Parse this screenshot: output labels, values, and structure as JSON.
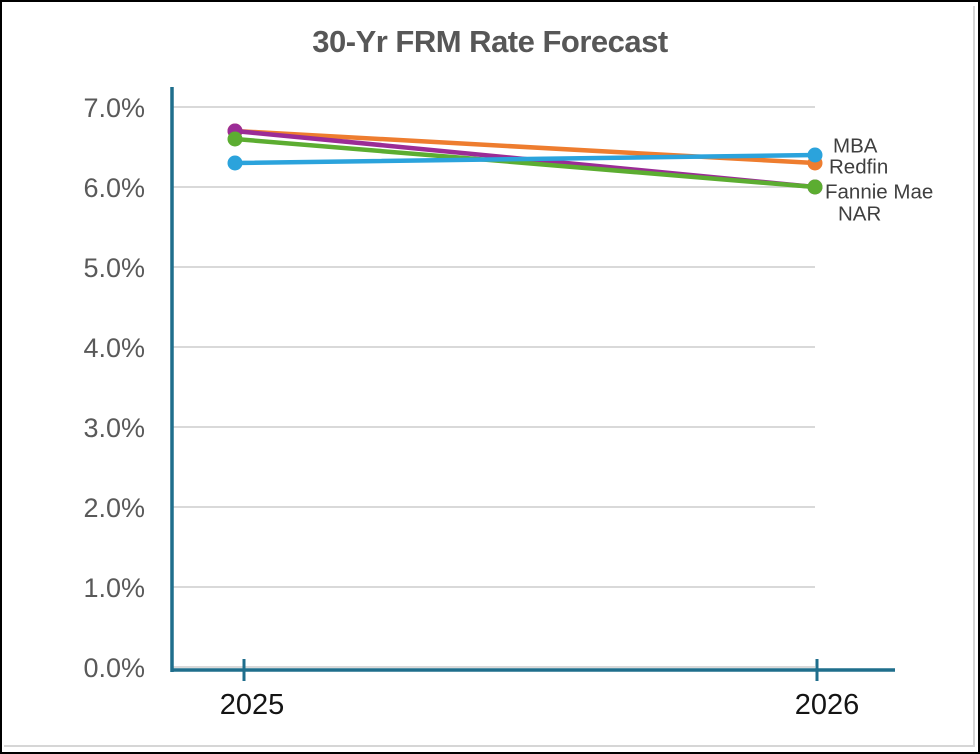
{
  "title": "30-Yr FRM Rate Forecast",
  "chart_data": {
    "type": "line",
    "title": "30-Yr FRM Rate Forecast",
    "xlabel": "",
    "ylabel": "",
    "categories": [
      "2025",
      "2026"
    ],
    "series": [
      {
        "name": "MBA",
        "values": [
          6.3,
          6.4
        ],
        "color": "#2BA3DC",
        "label_dy": -9,
        "label_x": 831
      },
      {
        "name": "Redfin",
        "values": [
          6.7,
          6.3
        ],
        "color": "#EE7D2F",
        "label_dy": 4,
        "label_x": 827
      },
      {
        "name": "Fannie Mae",
        "values": [
          6.6,
          6.0
        ],
        "color": "#5CAD31",
        "label_dy": 5,
        "label_x": 823
      },
      {
        "name": "NAR",
        "values": [
          6.7,
          6.0
        ],
        "color": "#9B2C96",
        "label_dy": 27,
        "label_x": 836
      }
    ],
    "draw_order": [
      1,
      3,
      2,
      0
    ],
    "ylim": [
      0,
      7
    ],
    "y_tick_step": 1.0,
    "y_tick_labels": [
      "0.0%",
      "1.0%",
      "2.0%",
      "3.0%",
      "4.0%",
      "5.0%",
      "6.0%",
      "7.0%"
    ],
    "grid": true,
    "legend_position": "right-annotations",
    "colors": {
      "axis": "#1F6E8C",
      "grid": "#D9D9D9",
      "y_tick_label": "#595959",
      "x_tick_label": "#141414",
      "annotation": "#3F3F3F",
      "title": "#575757"
    }
  }
}
